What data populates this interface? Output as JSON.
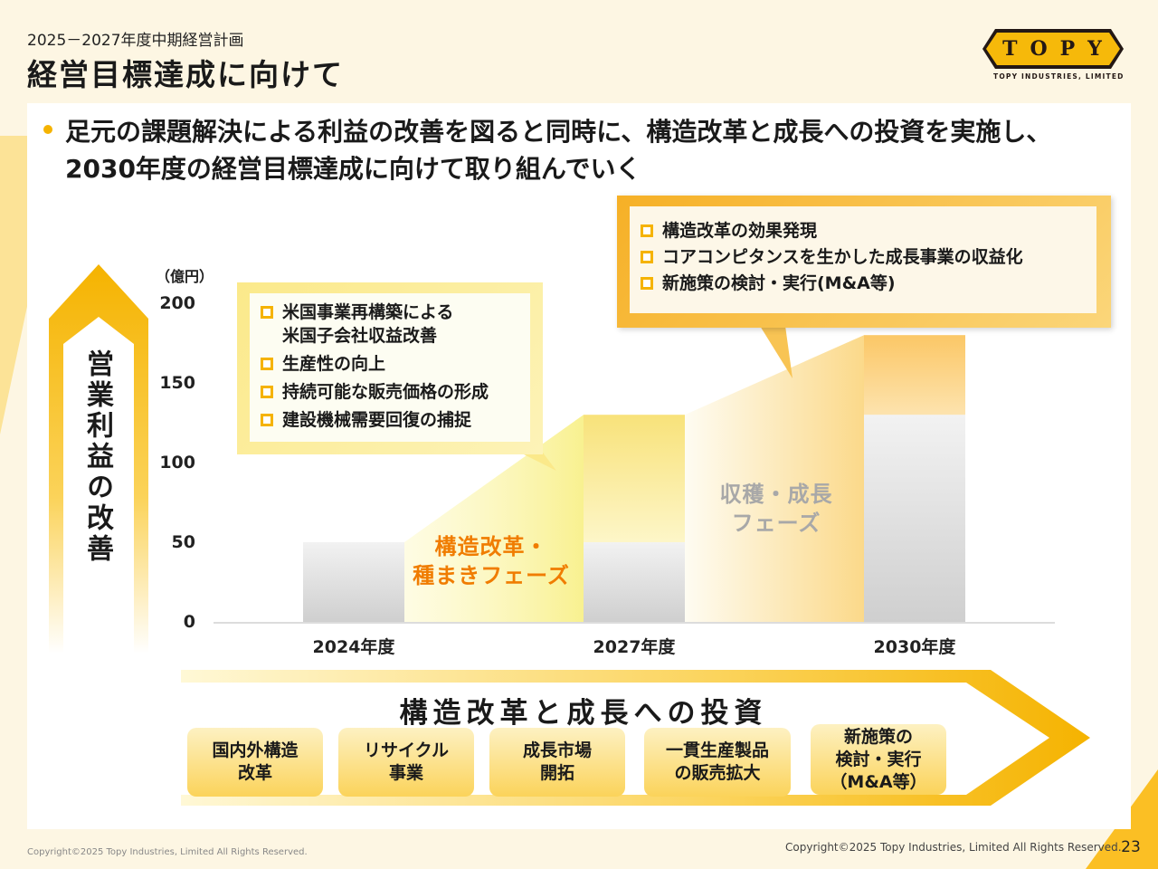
{
  "header": {
    "subtitle": "2025－2027年度中期経営計画",
    "title": "経営目標達成に向けて"
  },
  "logo": {
    "mark": "TOPY",
    "company": "TOPY INDUSTRIES, LIMITED"
  },
  "lead": "足元の課題解決による利益の改善を図ると同時に、構造改革と成長への投資を実施し、2030年度の経営目標達成に向けて取り組んでいく",
  "vertical_label": "営業利益の改善",
  "chart_data": {
    "type": "bar",
    "unit": "（億円）",
    "ylim": [
      0,
      200
    ],
    "yticks": [
      "200",
      "150",
      "100",
      "50",
      "0"
    ],
    "categories": [
      "2024年度",
      "2027年度",
      "2030年度"
    ],
    "series": [
      {
        "values": [
          50,
          50,
          130
        ],
        "color": "#d4d4d4"
      },
      {
        "values": [
          0,
          80,
          50
        ],
        "color": "#f8e27a"
      }
    ],
    "phases": [
      {
        "label": "構造改革・\n種まきフェーズ",
        "color": "#f07c00"
      },
      {
        "label": "収穫・成長\nフェーズ",
        "color": "#a8a8a8"
      }
    ]
  },
  "callout_left": {
    "items": [
      "米国事業再構築による\n米国子会社収益改善",
      "生産性の向上",
      "持続可能な販売価格の形成",
      "建設機械需要回復の捕捉"
    ]
  },
  "callout_right": {
    "items": [
      "構造改革の効果発現",
      "コアコンピタンスを生かした成長事業の収益化",
      "新施策の検討・実行(M&A等)"
    ]
  },
  "investment": {
    "title": "構造改革と成長への投資",
    "cards": [
      "国内外構造\n改革",
      "リサイクル\n事業",
      "成長市場\n開拓",
      "一貫生産製品\nの販売拡大",
      "新施策の\n検討・実行\n（M&A等）"
    ]
  },
  "footer": {
    "copyright_left": "Copyright©2025 Topy Industries, Limited All Rights Reserved.",
    "copyright_right": "Copyright©2025 Topy Industries, Limited All Rights Reserved.",
    "page": "23"
  },
  "colors": {
    "accent": "#f5b300",
    "phase1_text": "#f07c00",
    "phase2_text": "#a8a8a8"
  }
}
